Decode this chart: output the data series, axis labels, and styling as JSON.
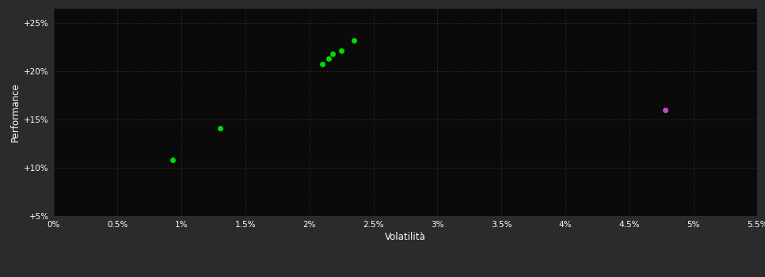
{
  "background_color": "#2b2b2b",
  "plot_bg_color": "#0a0a0a",
  "grid_color": "#555555",
  "text_color": "#ffffff",
  "xlabel": "Volatilità",
  "ylabel": "Performance",
  "xlim": [
    0.0,
    0.055
  ],
  "ylim": [
    0.05,
    0.265
  ],
  "xticks": [
    0.0,
    0.005,
    0.01,
    0.015,
    0.02,
    0.025,
    0.03,
    0.035,
    0.04,
    0.045,
    0.05,
    0.055
  ],
  "yticks": [
    0.05,
    0.1,
    0.15,
    0.2,
    0.25
  ],
  "xtick_labels": [
    "0%",
    "0.5%",
    "1%",
    "1.5%",
    "2%",
    "2.5%",
    "3%",
    "3.5%",
    "4%",
    "4.5%",
    "5%",
    "5.5%"
  ],
  "ytick_labels": [
    "+5%",
    "+10%",
    "+15%",
    "+20%",
    "+25%"
  ],
  "green_points": [
    [
      0.0093,
      0.108
    ],
    [
      0.013,
      0.141
    ],
    [
      0.021,
      0.207
    ],
    [
      0.0215,
      0.213
    ],
    [
      0.0218,
      0.218
    ],
    [
      0.0225,
      0.221
    ],
    [
      0.0235,
      0.232
    ]
  ],
  "magenta_points": [
    [
      0.0478,
      0.16
    ]
  ],
  "green_color": "#00dd00",
  "magenta_color": "#cc44cc",
  "marker_size": 5
}
